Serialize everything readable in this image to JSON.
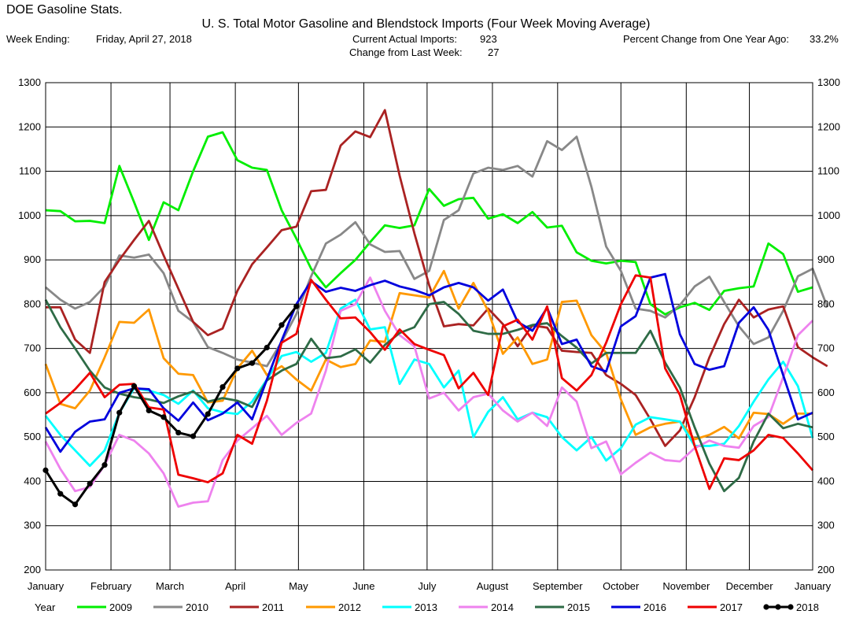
{
  "header": {
    "app_title": "DOE Gasoline Stats.",
    "chart_title": "U. S. Total Motor Gasoline and Blendstock Imports (Four Week Moving Average)",
    "week_ending_label": "Week Ending:",
    "week_ending_value": "Friday, April 27, 2018",
    "current_imports_label": "Current Actual Imports:",
    "current_imports_value": "923",
    "change_label": "Change from Last Week:",
    "change_value": "27",
    "pct_change_label": "Percent Change from One Year Ago:",
    "pct_change_value": "33.2%"
  },
  "chart_data": {
    "type": "line",
    "title": "U. S. Total Motor Gasoline and Blendstock Imports (Four Week Moving Average)",
    "x_axis": {
      "unit": "week of year",
      "range": [
        0,
        52
      ],
      "tick_positions": [
        0,
        4.43,
        8.43,
        12.86,
        17.14,
        21.57,
        25.86,
        30.29,
        34.71,
        39,
        43.43,
        47.71,
        52
      ],
      "tick_labels": [
        "January",
        "February",
        "March",
        "April",
        "May",
        "June",
        "July",
        "August",
        "September",
        "October",
        "November",
        "December",
        "January"
      ]
    },
    "y_axis": {
      "range": [
        200,
        1300
      ],
      "ticks": [
        200,
        300,
        400,
        500,
        600,
        700,
        800,
        900,
        1000,
        1100,
        1200,
        1300
      ]
    },
    "y_axis_right": {
      "range": [
        200,
        1300
      ],
      "ticks": [
        200,
        300,
        400,
        500,
        600,
        700,
        800,
        900,
        1000,
        1100,
        1200,
        1300
      ]
    },
    "grid": true,
    "legend": {
      "title": "Year",
      "placement": "bottom"
    },
    "series": [
      {
        "name": "2009",
        "color": "#00ee00",
        "marker": false,
        "values": [
          1012,
          1010,
          987,
          988,
          983,
          1112,
          1030,
          945,
          1030,
          1012,
          1100,
          1178,
          1188,
          1125,
          1108,
          1103,
          1012,
          948,
          880,
          838,
          870,
          900,
          940,
          978,
          972,
          978,
          1060,
          1022,
          1037,
          1040,
          993,
          1003,
          983,
          1008,
          973,
          977,
          917,
          898,
          892,
          898,
          895,
          800,
          777,
          793,
          803,
          787,
          830,
          836,
          840,
          937,
          913,
          828,
          838
        ]
      },
      {
        "name": "2010",
        "color": "#888888",
        "marker": false,
        "values": [
          838,
          810,
          790,
          805,
          840,
          910,
          905,
          912,
          870,
          785,
          760,
          703,
          690,
          675,
          668,
          660,
          715,
          778,
          863,
          937,
          957,
          985,
          935,
          918,
          920,
          857,
          875,
          990,
          1012,
          1095,
          1108,
          1103,
          1112,
          1088,
          1168,
          1148,
          1178,
          1065,
          930,
          875,
          790,
          785,
          770,
          798,
          840,
          862,
          805,
          750,
          710,
          725,
          785,
          863,
          880,
          793
        ]
      },
      {
        "name": "2011",
        "color": "#aa2222",
        "marker": false,
        "values": [
          793,
          793,
          720,
          690,
          850,
          900,
          945,
          988,
          910,
          835,
          760,
          730,
          745,
          830,
          890,
          928,
          967,
          975,
          1055,
          1058,
          1158,
          1190,
          1177,
          1238,
          1090,
          960,
          843,
          750,
          755,
          752,
          790,
          755,
          705,
          752,
          747,
          695,
          692,
          690,
          640,
          620,
          595,
          540,
          480,
          515,
          590,
          680,
          755,
          810,
          770,
          788,
          795,
          703,
          680,
          660
        ]
      },
      {
        "name": "2012",
        "color": "#ff9900",
        "marker": false,
        "values": [
          665,
          575,
          565,
          605,
          680,
          760,
          758,
          788,
          678,
          643,
          640,
          578,
          582,
          655,
          695,
          640,
          660,
          630,
          605,
          675,
          658,
          665,
          718,
          715,
          825,
          820,
          815,
          875,
          790,
          848,
          785,
          688,
          725,
          665,
          675,
          805,
          808,
          730,
          690,
          585,
          505,
          522,
          530,
          535,
          495,
          505,
          523,
          497,
          555,
          552,
          530,
          553,
          553
        ]
      },
      {
        "name": "2013",
        "color": "#00ffff",
        "marker": false,
        "values": [
          548,
          505,
          470,
          435,
          470,
          555,
          610,
          605,
          595,
          575,
          605,
          565,
          556,
          552,
          580,
          630,
          683,
          692,
          670,
          690,
          790,
          810,
          743,
          748,
          620,
          675,
          665,
          612,
          650,
          500,
          557,
          590,
          540,
          555,
          545,
          500,
          470,
          500,
          447,
          475,
          528,
          545,
          540,
          535,
          480,
          480,
          485,
          525,
          580,
          630,
          670,
          615,
          498
        ]
      },
      {
        "name": "2014",
        "color": "#ee82ee",
        "marker": false,
        "values": [
          490,
          428,
          378,
          387,
          437,
          505,
          492,
          463,
          418,
          343,
          352,
          355,
          448,
          492,
          520,
          548,
          505,
          532,
          553,
          650,
          785,
          800,
          860,
          785,
          730,
          705,
          587,
          600,
          560,
          590,
          598,
          560,
          535,
          555,
          525,
          612,
          580,
          475,
          490,
          416,
          442,
          465,
          448,
          445,
          475,
          492,
          480,
          476,
          525,
          545,
          635,
          730,
          763
        ]
      },
      {
        "name": "2015",
        "color": "#2e6b46",
        "marker": false,
        "values": [
          810,
          748,
          700,
          650,
          612,
          598,
          590,
          585,
          577,
          592,
          603,
          580,
          588,
          582,
          568,
          628,
          650,
          665,
          722,
          678,
          682,
          698,
          668,
          708,
          735,
          748,
          800,
          805,
          778,
          740,
          733,
          733,
          742,
          753,
          757,
          728,
          702,
          666,
          690,
          690,
          690,
          740,
          668,
          612,
          522,
          440,
          378,
          408,
          490,
          553,
          520,
          530,
          522
        ]
      },
      {
        "name": "2016",
        "color": "#0000dd",
        "marker": false,
        "values": [
          522,
          467,
          512,
          535,
          540,
          600,
          610,
          608,
          565,
          537,
          578,
          538,
          553,
          578,
          540,
          630,
          718,
          800,
          852,
          828,
          837,
          830,
          843,
          853,
          840,
          832,
          820,
          838,
          848,
          838,
          808,
          833,
          760,
          740,
          792,
          710,
          720,
          660,
          648,
          750,
          773,
          860,
          868,
          732,
          665,
          652,
          660,
          758,
          793,
          742,
          640,
          540,
          555
        ]
      },
      {
        "name": "2017",
        "color": "#ee0000",
        "marker": false,
        "values": [
          553,
          577,
          608,
          645,
          590,
          618,
          620,
          567,
          562,
          415,
          407,
          398,
          418,
          505,
          485,
          582,
          713,
          733,
          855,
          810,
          768,
          770,
          737,
          697,
          743,
          710,
          697,
          685,
          610,
          645,
          595,
          750,
          765,
          720,
          795,
          633,
          605,
          640,
          713,
          800,
          865,
          860,
          655,
          595,
          480,
          383,
          452,
          448,
          470,
          505,
          498,
          463,
          425
        ]
      },
      {
        "name": "2018",
        "color": "#000000",
        "marker": true,
        "values": [
          425,
          372,
          348,
          395,
          437,
          555,
          615,
          560,
          545,
          510,
          502,
          552,
          613,
          655,
          667,
          702,
          753,
          795
        ]
      }
    ]
  }
}
